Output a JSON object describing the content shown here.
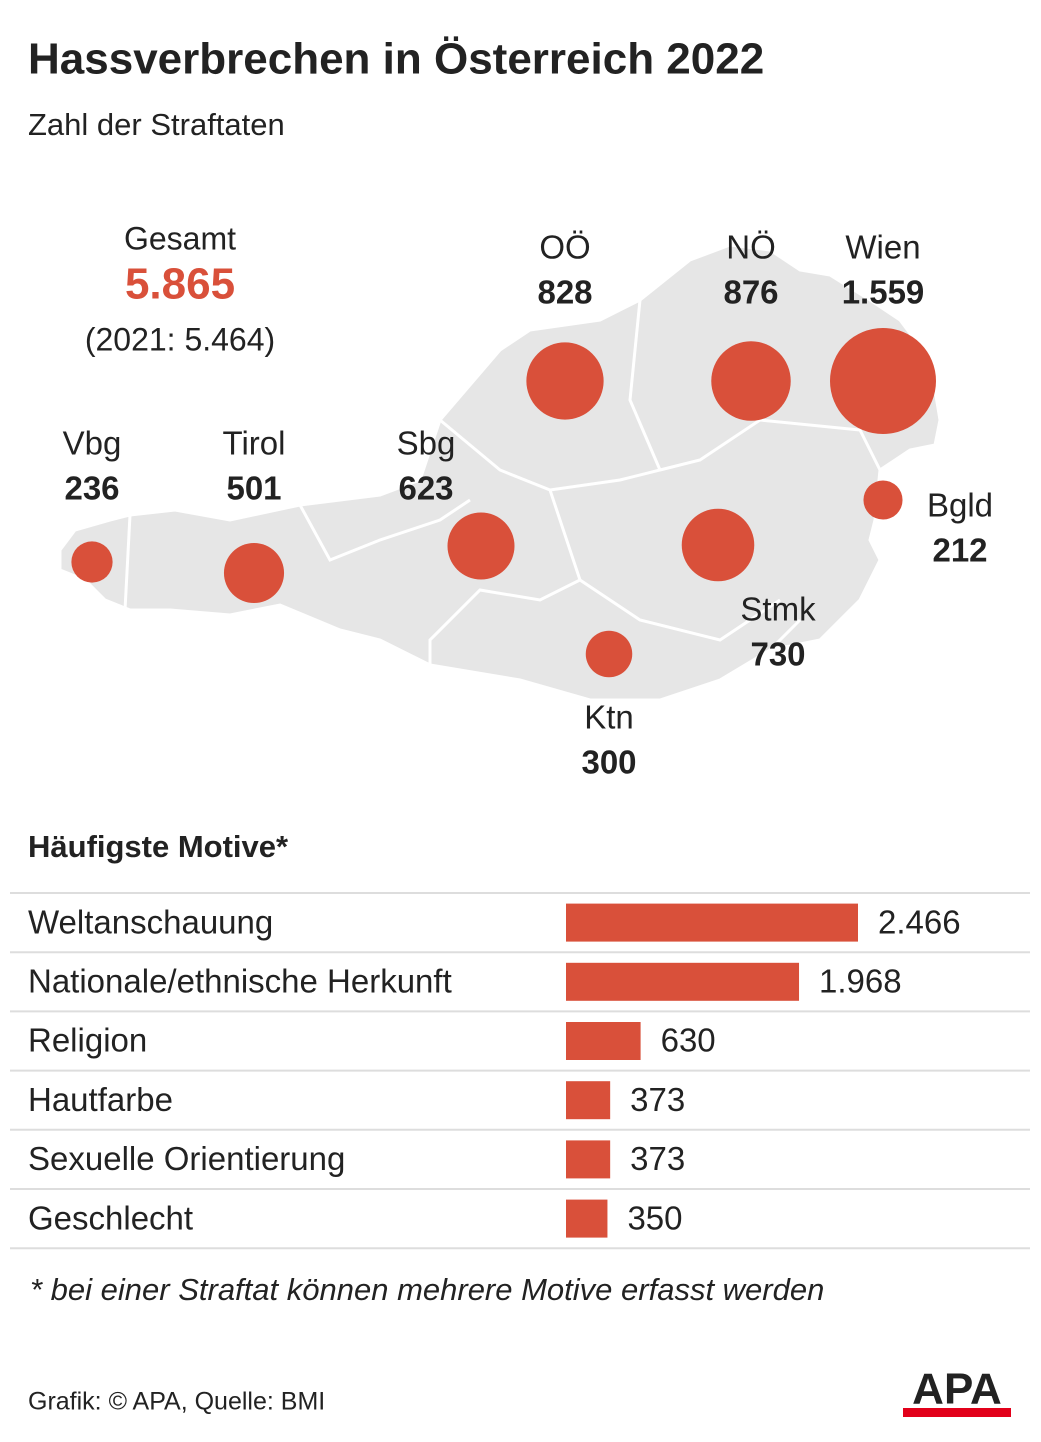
{
  "chart_data": [
    {
      "type": "bubble-map",
      "title": "Hassverbrechen in Österreich 2022",
      "subtitle": "Zahl der Straftaten",
      "total_label": "Gesamt",
      "total": 5865,
      "total_value_label": "5.865",
      "previous_annotation": "(2021: 5.464)",
      "categories": [
        "Vbg",
        "Tirol",
        "Sbg",
        "OÖ",
        "NÖ",
        "Wien",
        "Bgld",
        "Stmk",
        "Ktn"
      ],
      "values": [
        236,
        501,
        623,
        828,
        876,
        1559,
        212,
        730,
        300
      ],
      "value_labels": [
        "236",
        "501",
        "623",
        "828",
        "876",
        "1.559",
        "212",
        "730",
        "300"
      ],
      "color": "#d9503a"
    },
    {
      "type": "barh",
      "title": "Häufigste Motive*",
      "categories": [
        "Weltanschauung",
        "Nationale/ethnische Herkunft",
        "Religion",
        "Hautfarbe",
        "Sexuelle Orientierung",
        "Geschlecht"
      ],
      "values": [
        2466,
        1968,
        630,
        373,
        373,
        350
      ],
      "value_labels": [
        "2.466",
        "1.968",
        "630",
        "373",
        "373",
        "350"
      ],
      "color": "#d9503a",
      "note": "* bei einer Straftat können mehrere Motive erfasst werden"
    }
  ],
  "source": "Grafik: © APA, Quelle: BMI",
  "logo": "APA"
}
